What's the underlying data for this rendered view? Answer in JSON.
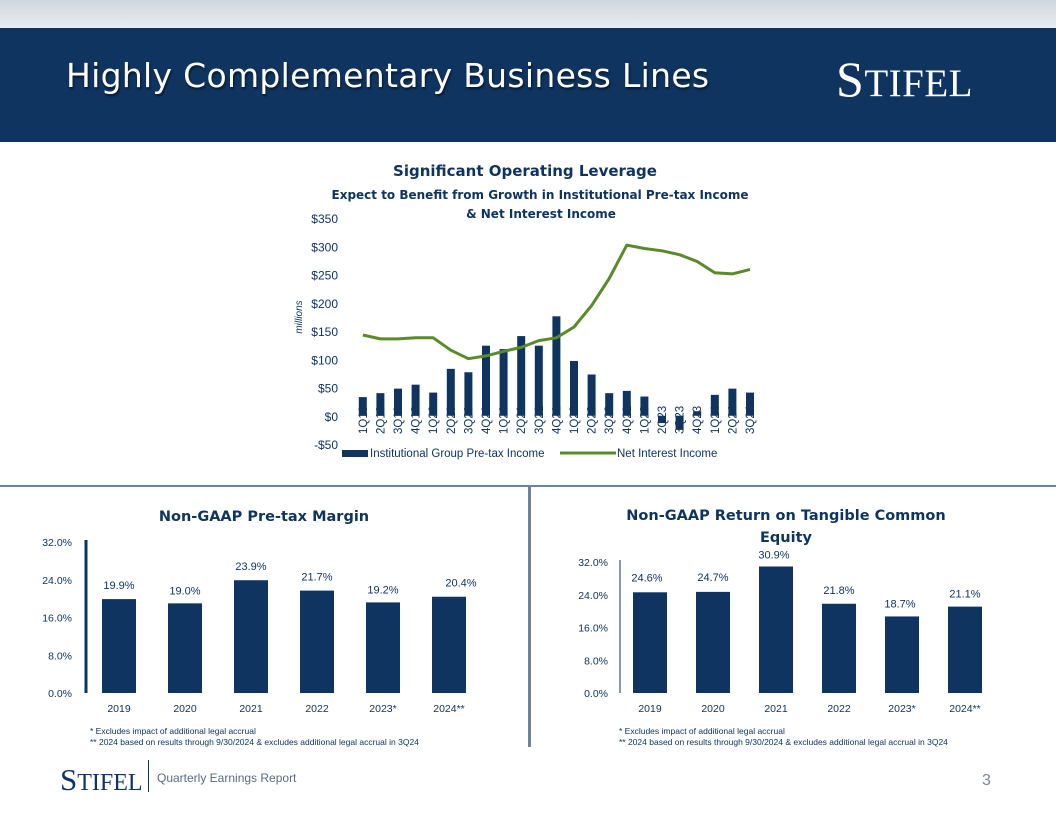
{
  "header": {
    "title": "Highly Complementary Business Lines",
    "logo_first": "S",
    "logo_rest": "TIFEL"
  },
  "footer": {
    "logo_first": "S",
    "logo_rest": "TIFEL",
    "label": "Quarterly Earnings Report",
    "page_number": "3"
  },
  "colors": {
    "navy": "#0f3460",
    "green": "#5a8a2a"
  },
  "notes": {
    "left_1": "*  Excludes impact of additional  legal accrual",
    "left_2": "** 2024 based on results through 9/30/2024 & excludes additional legal accrual in 3Q24",
    "right_1": "*  Excludes impact of additional legal accrual",
    "right_2": "** 2024 based on results through 9/30/2024 & excludes additional legal accrual in 3Q24"
  },
  "chart_data": [
    {
      "type": "bar+line",
      "title": "Significant Operating Leverage",
      "subtitle_line1": "Expect to Benefit from Growth in Institutional  Pre-tax Income",
      "subtitle_line2": "& Net Interest Income",
      "ylabel": "millions",
      "ylim": [
        -50,
        350
      ],
      "yticks": [
        350,
        300,
        250,
        200,
        150,
        100,
        50,
        0,
        -50
      ],
      "ytick_labels": [
        "$350",
        "$300",
        "$250",
        "$200",
        "$150",
        "$100",
        "$50",
        "$0",
        "-$50"
      ],
      "categories": [
        "1Q19",
        "2Q19",
        "3Q19",
        "4Q19",
        "1Q20",
        "2Q20",
        "3Q20",
        "4Q20",
        "1Q21",
        "2Q21",
        "3Q21",
        "4Q21",
        "1Q22",
        "2Q22",
        "3Q22",
        "4Q22",
        "1Q23",
        "2Q23",
        "3Q23",
        "4Q23",
        "1Q24",
        "2Q24",
        "3Q24"
      ],
      "series": [
        {
          "name": "Institutional Group Pre-tax Income",
          "type": "bar",
          "values": [
            33,
            40,
            48,
            55,
            41,
            83,
            77,
            124,
            118,
            141,
            124,
            176,
            97,
            73,
            40,
            44,
            34,
            -13,
            -25,
            8,
            37,
            48,
            41
          ]
        },
        {
          "name": "Net Interest Income",
          "type": "line",
          "values": [
            143,
            136,
            136,
            138,
            138,
            116,
            101,
            106,
            114,
            121,
            133,
            138,
            157,
            195,
            243,
            302,
            296,
            292,
            285,
            273,
            253,
            251,
            259
          ]
        }
      ],
      "legend": [
        "Institutional Group Pre-tax Income",
        "Net Interest Income"
      ],
      "legend_position": "bottom"
    },
    {
      "type": "bar",
      "title": "Non-GAAP Pre-tax Margin",
      "categories": [
        "2019",
        "2020",
        "2021",
        "2022",
        "2023*",
        "2024**"
      ],
      "values": [
        19.9,
        19.0,
        23.9,
        21.7,
        19.2,
        20.4
      ],
      "value_labels": [
        "19.9%",
        "19.0%",
        "23.9%",
        "21.7%",
        "19.2%",
        "20.4%"
      ],
      "ylim": [
        0,
        32
      ],
      "yticks": [
        32,
        24,
        16,
        8,
        0
      ],
      "ytick_labels": [
        "32.0%",
        "24.0%",
        "16.0%",
        "8.0%",
        "0.0%"
      ]
    },
    {
      "type": "bar",
      "title_line1": "Non-GAAP Return on Tangible Common",
      "title_line2": "Equity",
      "categories": [
        "2019",
        "2020",
        "2021",
        "2022",
        "2023*",
        "2024**"
      ],
      "values": [
        24.6,
        24.7,
        30.9,
        21.8,
        18.7,
        21.1
      ],
      "value_labels": [
        "24.6%",
        "24.7%",
        "30.9%",
        "21.8%",
        "18.7%",
        "21.1%"
      ],
      "ylim": [
        0,
        32
      ],
      "yticks": [
        32,
        24,
        16,
        8,
        0
      ],
      "ytick_labels": [
        "32.0%",
        "24.0%",
        "16.0%",
        "8.0%",
        "0.0%"
      ]
    }
  ]
}
